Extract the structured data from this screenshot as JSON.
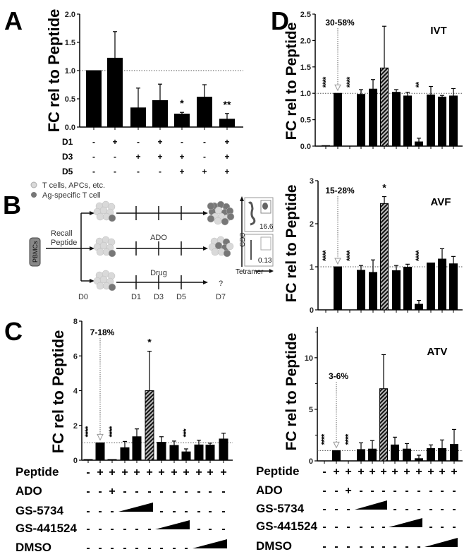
{
  "colors": {
    "bar": "#000000",
    "hatch_light": "#bbbbbb",
    "reference_line": "#555555",
    "cell_light": "#d9d9d9",
    "cell_dark": "#777777"
  },
  "schematic": {
    "panel": "B",
    "legend": [
      "T cells, APCs, etc.",
      "Ag-specific T cell"
    ],
    "source": "PBMCs",
    "stimulus": [
      "Recall",
      "Peptide"
    ],
    "branches": [
      "",
      "ADO",
      "Drug"
    ],
    "days": [
      "D0",
      "D1",
      "D3",
      "D5",
      "D7"
    ],
    "unknown": "?",
    "flow": {
      "y_axis": "CD8",
      "x_axis": "Tetramer",
      "values": [
        "16.6",
        "0.13"
      ]
    }
  },
  "chart_data": [
    {
      "id": "A",
      "panel": "A",
      "type": "bar",
      "title": "",
      "ylabel": "FC rel to Peptide",
      "ylim": [
        0,
        2.0
      ],
      "yticks": [
        0,
        0.5,
        1.0,
        1.5,
        2.0
      ],
      "tick_decimals": 1,
      "reference_line": 1.0,
      "values": [
        1.0,
        1.22,
        0.34,
        0.47,
        0.23,
        0.53,
        0.14
      ],
      "error_upper": [
        1.0,
        1.69,
        0.69,
        0.76,
        0.26,
        0.75,
        0.24
      ],
      "hatched": [],
      "significance": [
        "",
        "",
        "",
        "",
        "*",
        "",
        "**"
      ],
      "conditions": [
        {
          "label": "D1",
          "symbols": [
            "-",
            "+",
            "-",
            "+",
            "-",
            "-",
            "+"
          ]
        },
        {
          "label": "D3",
          "symbols": [
            "-",
            "-",
            "+",
            "+",
            "+",
            "-",
            "+"
          ]
        },
        {
          "label": "D5",
          "symbols": [
            "-",
            "-",
            "-",
            "-",
            "+",
            "+",
            "+"
          ]
        }
      ]
    },
    {
      "id": "C",
      "panel": "C",
      "type": "bar",
      "title": "",
      "ylabel": "FC rel to Peptide",
      "ylim": [
        0,
        8
      ],
      "yticks": [
        0,
        2,
        4,
        6,
        8
      ],
      "tick_decimals": 0,
      "reference_line": 1.0,
      "annotation": {
        "text": "7-18%",
        "bar": 1
      },
      "values": [
        0.04,
        1.0,
        0.04,
        0.72,
        1.35,
        4.0,
        1.03,
        0.85,
        0.48,
        0.88,
        0.87,
        1.22
      ],
      "error_upper": [
        0.04,
        1.0,
        0.04,
        1.08,
        1.8,
        6.27,
        1.35,
        1.1,
        0.65,
        1.15,
        0.98,
        1.55
      ],
      "hatched": [
        5
      ],
      "significance": [
        "****",
        "",
        "****",
        "",
        "",
        "*",
        "",
        "",
        "***",
        "",
        "",
        ""
      ],
      "conditions": [
        {
          "label": "Peptide",
          "symbols": [
            "-",
            "+",
            "+",
            "+",
            "+",
            "+",
            "+",
            "+",
            "+",
            "+",
            "+",
            "+"
          ]
        },
        {
          "label": "ADO",
          "symbols": [
            "-",
            "-",
            "+",
            "-",
            "-",
            "-",
            "-",
            "-",
            "-",
            "-",
            "-",
            "-"
          ]
        },
        {
          "label": "GS-5734",
          "symbols": [
            "-",
            "-",
            "-",
            "",
            "",
            "",
            "-",
            "-",
            "-",
            "-",
            "-",
            "-"
          ],
          "ramp": [
            3,
            5
          ]
        },
        {
          "label": "GS-441524",
          "symbols": [
            "-",
            "-",
            "-",
            "-",
            "-",
            "-",
            "",
            "",
            "",
            "-",
            "-",
            "-"
          ],
          "ramp": [
            6,
            8
          ]
        },
        {
          "label": "DMSO",
          "symbols": [
            "-",
            "-",
            "-",
            "-",
            "-",
            "-",
            "-",
            "-",
            "-",
            "",
            "",
            ""
          ],
          "ramp": [
            9,
            11
          ]
        }
      ]
    },
    {
      "id": "IVT",
      "panel": "D",
      "type": "bar",
      "title": "IVT",
      "ylabel": "FC rel to Peptide",
      "ylim": [
        0,
        2.5
      ],
      "yticks": [
        0,
        0.5,
        1.0,
        1.5,
        2.0,
        2.5
      ],
      "tick_decimals": 1,
      "reference_line": 1.0,
      "annotation": {
        "text": "30-58%",
        "bar": 1
      },
      "values": [
        0.01,
        1.0,
        0,
        0.98,
        1.08,
        1.48,
        1.02,
        0.95,
        0.08,
        0.97,
        0.93,
        0.95
      ],
      "error_upper": [
        0.01,
        1.0,
        0,
        1.07,
        1.26,
        2.27,
        1.07,
        1.02,
        0.15,
        1.13,
        0.96,
        1.09
      ],
      "hatched": [
        5
      ],
      "significance": [
        "****",
        "",
        "****",
        "",
        "",
        "",
        "",
        "",
        "**",
        "",
        "",
        ""
      ]
    },
    {
      "id": "AVF",
      "panel": "",
      "type": "bar",
      "title": "AVF",
      "ylabel": "FC rel to Peptide",
      "ylim": [
        0,
        3
      ],
      "yticks": [
        0,
        1,
        2,
        3
      ],
      "tick_decimals": 0,
      "reference_line": 1.0,
      "annotation": {
        "text": "15-28%",
        "bar": 1
      },
      "values": [
        0,
        1.0,
        0,
        0.92,
        0.87,
        2.47,
        0.91,
        0.99,
        0.13,
        1.09,
        1.18,
        1.07
      ],
      "error_upper": [
        0,
        1.0,
        0,
        1.03,
        1.16,
        2.63,
        1.03,
        1.06,
        0.22,
        1.09,
        1.42,
        1.24
      ],
      "hatched": [
        5
      ],
      "significance": [
        "****",
        "",
        "****",
        "",
        "",
        "*",
        "",
        "",
        "****",
        "",
        "",
        ""
      ]
    },
    {
      "id": "ATV",
      "panel": "",
      "type": "bar",
      "title": "ATV",
      "ylabel": "FC rel to Peptide",
      "ylim": [
        0,
        13
      ],
      "yticks": [
        0,
        5,
        10
      ],
      "tick_decimals": 0,
      "reference_line": 1.0,
      "annotation": {
        "text": "3-6%",
        "bar": 1
      },
      "values": [
        0,
        1.0,
        0,
        1.1,
        1.15,
        7.0,
        1.55,
        1.15,
        0.22,
        1.2,
        1.2,
        1.6
      ],
      "error_upper": [
        0,
        1.0,
        0,
        1.75,
        1.97,
        10.3,
        2.3,
        1.68,
        0.55,
        1.55,
        2.03,
        3.05
      ],
      "hatched": [
        5
      ],
      "significance": [
        "****",
        "",
        "****",
        "",
        "",
        "",
        "",
        "",
        "",
        "",
        "",
        ""
      ],
      "conditions": [
        {
          "label": "Peptide",
          "symbols": [
            "-",
            "+",
            "+",
            "+",
            "+",
            "+",
            "+",
            "+",
            "+",
            "+",
            "+",
            "+"
          ]
        },
        {
          "label": "ADO",
          "symbols": [
            "-",
            "-",
            "+",
            "-",
            "-",
            "-",
            "-",
            "-",
            "-",
            "-",
            "-",
            "-"
          ]
        },
        {
          "label": "GS-5734",
          "symbols": [
            "-",
            "-",
            "-",
            "",
            "",
            "",
            "-",
            "-",
            "-",
            "-",
            "-",
            "-"
          ],
          "ramp": [
            3,
            5
          ]
        },
        {
          "label": "GS-441524",
          "symbols": [
            "-",
            "-",
            "-",
            "-",
            "-",
            "-",
            "",
            "",
            "",
            "-",
            "-",
            "-"
          ],
          "ramp": [
            6,
            8
          ]
        },
        {
          "label": "DMSO",
          "symbols": [
            "-",
            "-",
            "-",
            "-",
            "-",
            "-",
            "-",
            "-",
            "-",
            "",
            "",
            ""
          ],
          "ramp": [
            9,
            11
          ]
        }
      ]
    }
  ]
}
